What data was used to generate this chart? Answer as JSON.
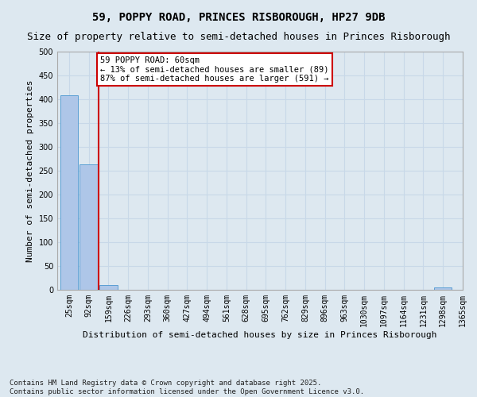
{
  "title": "59, POPPY ROAD, PRINCES RISBOROUGH, HP27 9DB",
  "subtitle": "Size of property relative to semi-detached houses in Princes Risborough",
  "xlabel": "Distribution of semi-detached houses by size in Princes Risborough",
  "ylabel": "Number of semi-detached properties",
  "footnote1": "Contains HM Land Registry data © Crown copyright and database right 2025.",
  "footnote2": "Contains public sector information licensed under the Open Government Licence v3.0.",
  "bar_values": [
    408,
    264,
    10,
    0,
    0,
    0,
    0,
    0,
    0,
    0,
    0,
    0,
    0,
    0,
    0,
    0,
    0,
    0,
    0,
    5
  ],
  "bin_labels": [
    "25sqm",
    "92sqm",
    "159sqm",
    "226sqm",
    "293sqm",
    "360sqm",
    "427sqm",
    "494sqm",
    "561sqm",
    "628sqm",
    "695sqm",
    "762sqm",
    "829sqm",
    "896sqm",
    "963sqm",
    "1030sqm",
    "1097sqm",
    "1164sqm",
    "1231sqm",
    "1298sqm",
    "1365sqm"
  ],
  "bar_color": "#aec6e8",
  "bar_edge_color": "#5a9fd4",
  "grid_color": "#c8d8e8",
  "background_color": "#dde8f0",
  "annotation_text": "59 POPPY ROAD: 60sqm\n← 13% of semi-detached houses are smaller (89)\n87% of semi-detached houses are larger (591) →",
  "annotation_box_color": "#ffffff",
  "annotation_box_edge": "#cc0000",
  "vline_x": 1.5,
  "vline_color": "#cc0000",
  "ylim": [
    0,
    500
  ],
  "yticks": [
    0,
    50,
    100,
    150,
    200,
    250,
    300,
    350,
    400,
    450,
    500
  ],
  "title_fontsize": 10,
  "subtitle_fontsize": 9,
  "xlabel_fontsize": 8,
  "ylabel_fontsize": 8,
  "tick_fontsize": 7,
  "annot_fontsize": 7.5,
  "footnote_fontsize": 6.5
}
